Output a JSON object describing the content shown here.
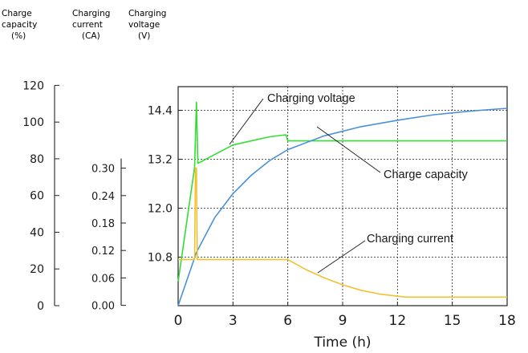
{
  "chart_data": {
    "type": "line",
    "axes": {
      "capacity": {
        "header": [
          "Charge",
          "capacity",
          "(%)"
        ],
        "ticks": [
          "120",
          "100",
          "80",
          "60",
          "40",
          "20",
          "0"
        ],
        "range": [
          0,
          120
        ]
      },
      "current": {
        "header": [
          "Charging",
          "current",
          "(CA)"
        ],
        "ticks": [
          "0.30",
          "0.24",
          "0.18",
          "0.12",
          "0.06",
          "0.00"
        ],
        "range": [
          0,
          0.3
        ]
      },
      "voltage": {
        "header": [
          "Charging",
          "voltage",
          "(V)"
        ],
        "ticks": [
          "14.4",
          "13.2",
          "12.0",
          "10.8"
        ],
        "range": [
          9.6,
          15.0
        ]
      },
      "time": {
        "label": "Time (h)",
        "ticks": [
          "0",
          "3",
          "6",
          "9",
          "12",
          "15",
          "18"
        ],
        "range": [
          0,
          18
        ]
      }
    },
    "grid": true,
    "series": [
      {
        "name": "Charging voltage",
        "axis": "voltage",
        "color": "#33dd33",
        "x": [
          0,
          0.9,
          1.0,
          1.08,
          3.0,
          5.0,
          5.9,
          6.0,
          18
        ],
        "y": [
          10.2,
          13.0,
          14.6,
          13.1,
          13.55,
          13.75,
          13.8,
          13.65,
          13.65
        ]
      },
      {
        "name": "Charge capacity",
        "axis": "capacity",
        "color": "#4a90d9",
        "x": [
          0,
          1,
          2,
          3,
          4,
          5,
          6,
          8,
          10,
          12,
          14,
          16,
          18
        ],
        "y": [
          0,
          29,
          48,
          61,
          71,
          79,
          85,
          92.5,
          97.5,
          101,
          104,
          106,
          107.5
        ]
      },
      {
        "name": "Charging current",
        "axis": "current",
        "color": "#f2c12e",
        "x": [
          0,
          0.9,
          0.95,
          1.0,
          1.05,
          5.95,
          6.0,
          7.0,
          8.0,
          9.0,
          10.0,
          11.0,
          12.0,
          12.5,
          18
        ],
        "y": [
          0.1,
          0.1,
          0.3,
          0.3,
          0.1,
          0.1,
          0.1,
          0.078,
          0.06,
          0.045,
          0.033,
          0.025,
          0.02,
          0.018,
          0.018
        ]
      }
    ],
    "annotations": [
      "Charging voltage",
      "Charge capacity",
      "Charging current"
    ]
  }
}
